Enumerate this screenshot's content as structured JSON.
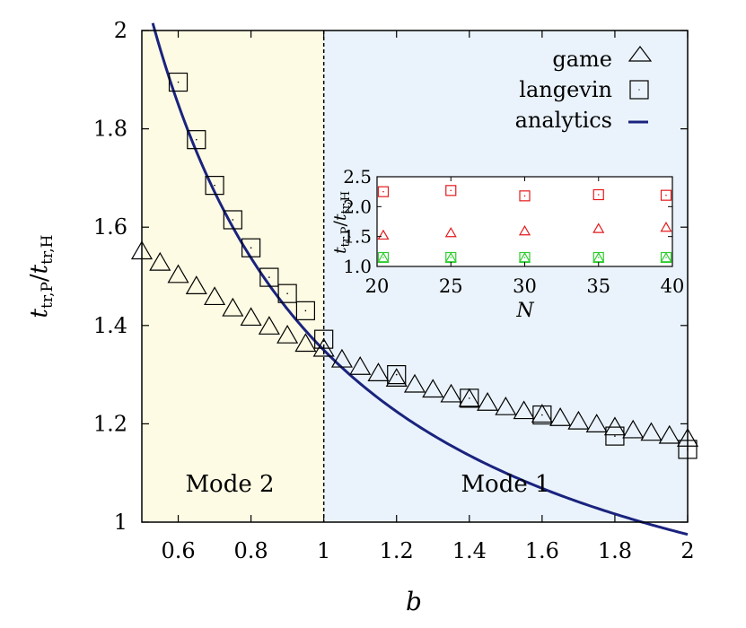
{
  "chart_data": [
    {
      "id": "main",
      "type": "scatter",
      "xlabel": "b",
      "ylabel": "t_tr,P / t_tr,H",
      "xlim": [
        0.5,
        2.0
      ],
      "ylim": [
        1.0,
        2.0
      ],
      "x_ticks": [
        "0.6",
        "0.8",
        "1",
        "1.2",
        "1.4",
        "1.6",
        "1.8",
        "2"
      ],
      "x_tick_values": [
        0.6,
        0.8,
        1.0,
        1.2,
        1.4,
        1.6,
        1.8,
        2.0
      ],
      "y_ticks": [
        "1",
        "1.2",
        "1.4",
        "1.6",
        "1.8",
        "2"
      ],
      "y_tick_values": [
        1.0,
        1.2,
        1.4,
        1.6,
        1.8,
        2.0
      ],
      "grid": false,
      "legend_position": "top-right",
      "regions": [
        {
          "label": "Mode 2",
          "x_range": [
            0.5,
            1.0
          ],
          "color": "#fdfbe3"
        },
        {
          "label": "Mode 1",
          "x_range": [
            1.0,
            2.0
          ],
          "color": "#eaf3fb"
        }
      ],
      "divider_x": 1.0,
      "series": [
        {
          "name": "game",
          "marker": "triangle",
          "x": [
            0.5,
            0.55,
            0.6,
            0.65,
            0.7,
            0.75,
            0.8,
            0.85,
            0.9,
            0.95,
            1.0,
            1.05,
            1.1,
            1.15,
            1.2,
            1.25,
            1.3,
            1.35,
            1.4,
            1.45,
            1.5,
            1.55,
            1.6,
            1.65,
            1.7,
            1.75,
            1.8,
            1.85,
            1.9,
            1.95,
            2.0
          ],
          "y": [
            1.553,
            1.53,
            1.505,
            1.482,
            1.46,
            1.437,
            1.418,
            1.4,
            1.382,
            1.365,
            1.355,
            1.333,
            1.318,
            1.305,
            1.294,
            1.282,
            1.272,
            1.262,
            1.253,
            1.245,
            1.236,
            1.228,
            1.221,
            1.214,
            1.207,
            1.201,
            1.195,
            1.189,
            1.184,
            1.178,
            1.172
          ]
        },
        {
          "name": "langevin",
          "marker": "square",
          "x": [
            0.6,
            0.65,
            0.7,
            0.75,
            0.8,
            0.85,
            0.9,
            0.95,
            1.0,
            1.2,
            1.4,
            1.6,
            1.8,
            2.0
          ],
          "y": [
            1.895,
            1.778,
            1.685,
            1.615,
            1.558,
            1.498,
            1.465,
            1.43,
            1.372,
            1.3,
            1.252,
            1.218,
            1.175,
            1.148
          ]
        },
        {
          "name": "analytics",
          "marker": "line",
          "formula": "0.6 + 0.75/b",
          "x_range": [
            0.53,
            2.0
          ]
        }
      ]
    },
    {
      "id": "inset",
      "type": "scatter",
      "xlabel": "N",
      "ylabel": "t_tr,P / t_tr,H",
      "xlim": [
        20,
        40
      ],
      "ylim": [
        1.0,
        2.5
      ],
      "x_ticks": [
        "20",
        "25",
        "30",
        "35",
        "40"
      ],
      "x_tick_values": [
        20,
        25,
        30,
        35,
        40
      ],
      "y_ticks": [
        "1.0",
        "1.5",
        "2.0",
        "2.5"
      ],
      "y_tick_values": [
        1.0,
        1.5,
        2.0,
        2.5
      ],
      "series": [
        {
          "marker": "square",
          "color": "#e41a1c",
          "x": [
            20,
            25,
            30,
            35,
            40
          ],
          "y": [
            2.25,
            2.27,
            2.18,
            2.2,
            2.19
          ]
        },
        {
          "marker": "triangle",
          "color": "#e41a1c",
          "x": [
            20,
            25,
            30,
            35,
            40
          ],
          "y": [
            1.53,
            1.57,
            1.6,
            1.64,
            1.66
          ]
        },
        {
          "marker": "square",
          "color": "#2ecc2e",
          "x": [
            20,
            25,
            30,
            35,
            40
          ],
          "y": [
            1.15,
            1.15,
            1.15,
            1.15,
            1.15
          ]
        },
        {
          "marker": "triangle",
          "color": "#2ecc2e",
          "x": [
            20,
            25,
            30,
            35,
            40
          ],
          "y": [
            1.15,
            1.15,
            1.15,
            1.15,
            1.15
          ]
        }
      ]
    }
  ],
  "legend": {
    "game_label": "game",
    "langevin_label": "langevin",
    "analytics_label": "analytics"
  },
  "labels": {
    "mode2": "Mode 2",
    "mode1": "Mode 1",
    "main_xlabel": "b",
    "main_ylabel_t": "t",
    "main_ylabel_sub_num": "tr,P",
    "main_ylabel_sub_den": "tr,H",
    "inset_xlabel": "N"
  },
  "colors": {
    "analytics_line": "#1a237e",
    "mode2_bg": "#fdfbe3",
    "mode1_bg": "#eaf3fb",
    "inset_red": "#e41a1c",
    "inset_green": "#2ecc2e"
  }
}
